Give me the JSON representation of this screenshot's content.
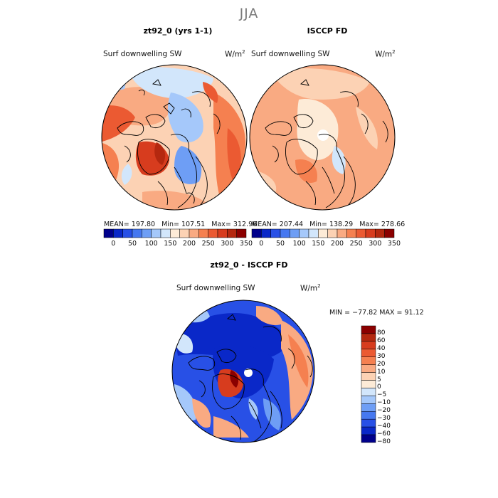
{
  "season_title": "JJA",
  "panels": [
    {
      "title": "zt92_0 (yrs 1-1)",
      "variable": "Surf downwelling SW",
      "units": "W/m",
      "units_exp": "2",
      "stats": {
        "mean_label": "MEAN=",
        "mean": "197.80",
        "min_label": "Min=",
        "min": "107.51",
        "max_label": "Max=",
        "max": "312.96"
      },
      "colorbar": {
        "ticks": [
          "0",
          "50",
          "100",
          "150",
          "200",
          "250",
          "300",
          "350"
        ]
      }
    },
    {
      "title": "ISCCP FD",
      "variable": "Surf downwelling SW",
      "units": "W/m",
      "units_exp": "2",
      "stats": {
        "mean_label": "MEAN=",
        "mean": "207.44",
        "min_label": "Min=",
        "min": "138.29",
        "max_label": "Max=",
        "max": "278.66"
      },
      "colorbar": {
        "ticks": [
          "0",
          "50",
          "100",
          "150",
          "200",
          "250",
          "300",
          "350"
        ]
      }
    }
  ],
  "difference_panel": {
    "title": "zt92_0 - ISCCP FD",
    "variable": "Surf downwelling SW",
    "units": "W/m",
    "units_exp": "2",
    "stats_text": "MIN = −77.82 MAX =  91.12",
    "colorbar": {
      "ticks": [
        "80",
        "60",
        "40",
        "30",
        "20",
        "10",
        "5",
        "0",
        "−5",
        "−10",
        "−20",
        "−30",
        "−40",
        "−60",
        "−80"
      ]
    }
  },
  "colors": {
    "abs_scale": [
      "#00008b",
      "#0a28c8",
      "#2850e6",
      "#4678f0",
      "#6e9ef5",
      "#a5c8fa",
      "#d2e6fb",
      "#fdebd7",
      "#fcd2b4",
      "#f9aa82",
      "#f58050",
      "#eb5a32",
      "#d73c1e",
      "#b4280f",
      "#8b0000"
    ],
    "diff_scale": [
      "#8b0000",
      "#b4280f",
      "#d73c1e",
      "#eb5a32",
      "#f58050",
      "#f9aa82",
      "#fcd2b4",
      "#fdebd7",
      "#d2e6fb",
      "#a5c8fa",
      "#6e9ef5",
      "#4678f0",
      "#2850e6",
      "#0a28c8",
      "#00008b"
    ]
  }
}
